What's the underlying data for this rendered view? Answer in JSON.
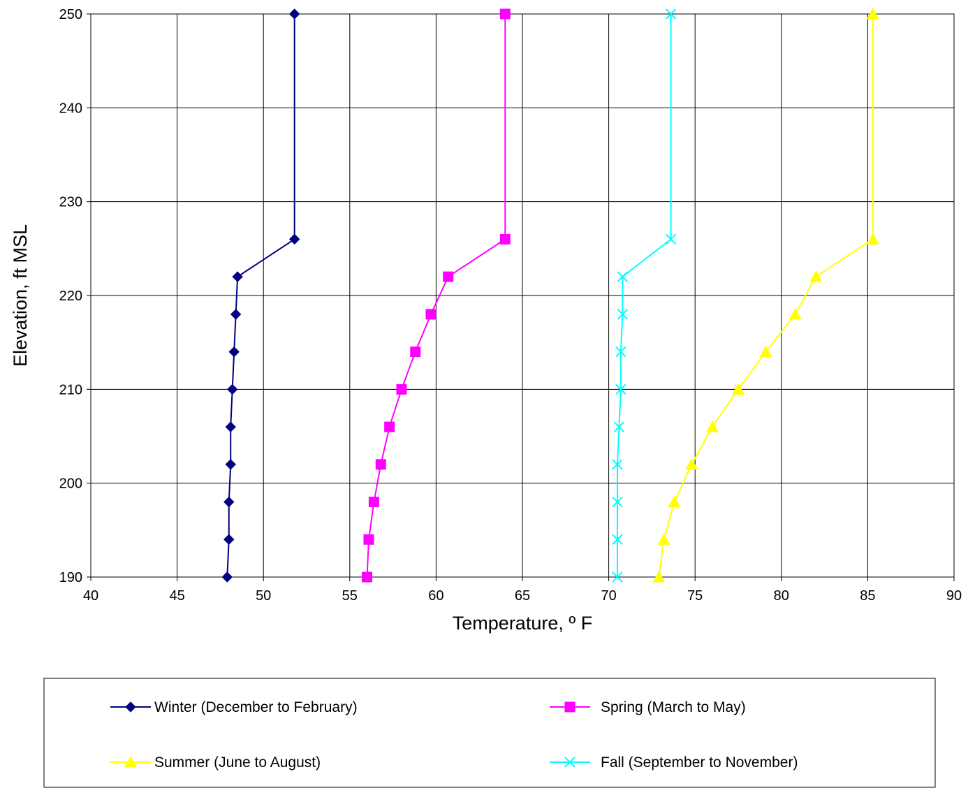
{
  "chart_data": {
    "type": "line",
    "title": "",
    "xlabel": "Temperature, º F",
    "ylabel": "Elevation, ft MSL",
    "xlim": [
      40,
      90
    ],
    "ylim": [
      190,
      250
    ],
    "x_ticks": [
      40,
      45,
      50,
      55,
      60,
      65,
      70,
      75,
      80,
      85,
      90
    ],
    "y_ticks": [
      190,
      200,
      210,
      220,
      230,
      240,
      250
    ],
    "grid": true,
    "legend_position": "bottom",
    "series": [
      {
        "name": "Winter (December to February)",
        "color": "#000080",
        "marker": "diamond",
        "points": [
          [
            47.9,
            190
          ],
          [
            48.0,
            194
          ],
          [
            48.0,
            198
          ],
          [
            48.1,
            202
          ],
          [
            48.1,
            206
          ],
          [
            48.2,
            210
          ],
          [
            48.3,
            214
          ],
          [
            48.4,
            218
          ],
          [
            48.5,
            222
          ],
          [
            51.8,
            226
          ],
          [
            51.8,
            250
          ]
        ]
      },
      {
        "name": "Spring (March to May)",
        "color": "#FF00FF",
        "marker": "square",
        "points": [
          [
            56.0,
            190
          ],
          [
            56.1,
            194
          ],
          [
            56.4,
            198
          ],
          [
            56.8,
            202
          ],
          [
            57.3,
            206
          ],
          [
            58.0,
            210
          ],
          [
            58.8,
            214
          ],
          [
            59.7,
            218
          ],
          [
            60.7,
            222
          ],
          [
            64.0,
            226
          ],
          [
            64.0,
            250
          ]
        ]
      },
      {
        "name": "Summer (June to August)",
        "color": "#FFFF00",
        "marker": "triangle",
        "points": [
          [
            72.9,
            190
          ],
          [
            73.2,
            194
          ],
          [
            73.8,
            198
          ],
          [
            74.8,
            202
          ],
          [
            76.0,
            206
          ],
          [
            77.5,
            210
          ],
          [
            79.1,
            214
          ],
          [
            80.8,
            218
          ],
          [
            82.0,
            222
          ],
          [
            85.3,
            226
          ],
          [
            85.3,
            250
          ]
        ]
      },
      {
        "name": "Fall (September to November)",
        "color": "#00FFFF",
        "marker": "x",
        "points": [
          [
            70.5,
            190
          ],
          [
            70.5,
            194
          ],
          [
            70.5,
            198
          ],
          [
            70.5,
            202
          ],
          [
            70.6,
            206
          ],
          [
            70.7,
            210
          ],
          [
            70.7,
            214
          ],
          [
            70.8,
            218
          ],
          [
            70.8,
            222
          ],
          [
            73.6,
            226
          ],
          [
            73.6,
            250
          ]
        ]
      }
    ]
  },
  "legend": {
    "entries": [
      {
        "label": "Winter (December to February)"
      },
      {
        "label": "Spring (March to May)"
      },
      {
        "label": "Summer (June to August)"
      },
      {
        "label": "Fall (September to November)"
      }
    ]
  }
}
